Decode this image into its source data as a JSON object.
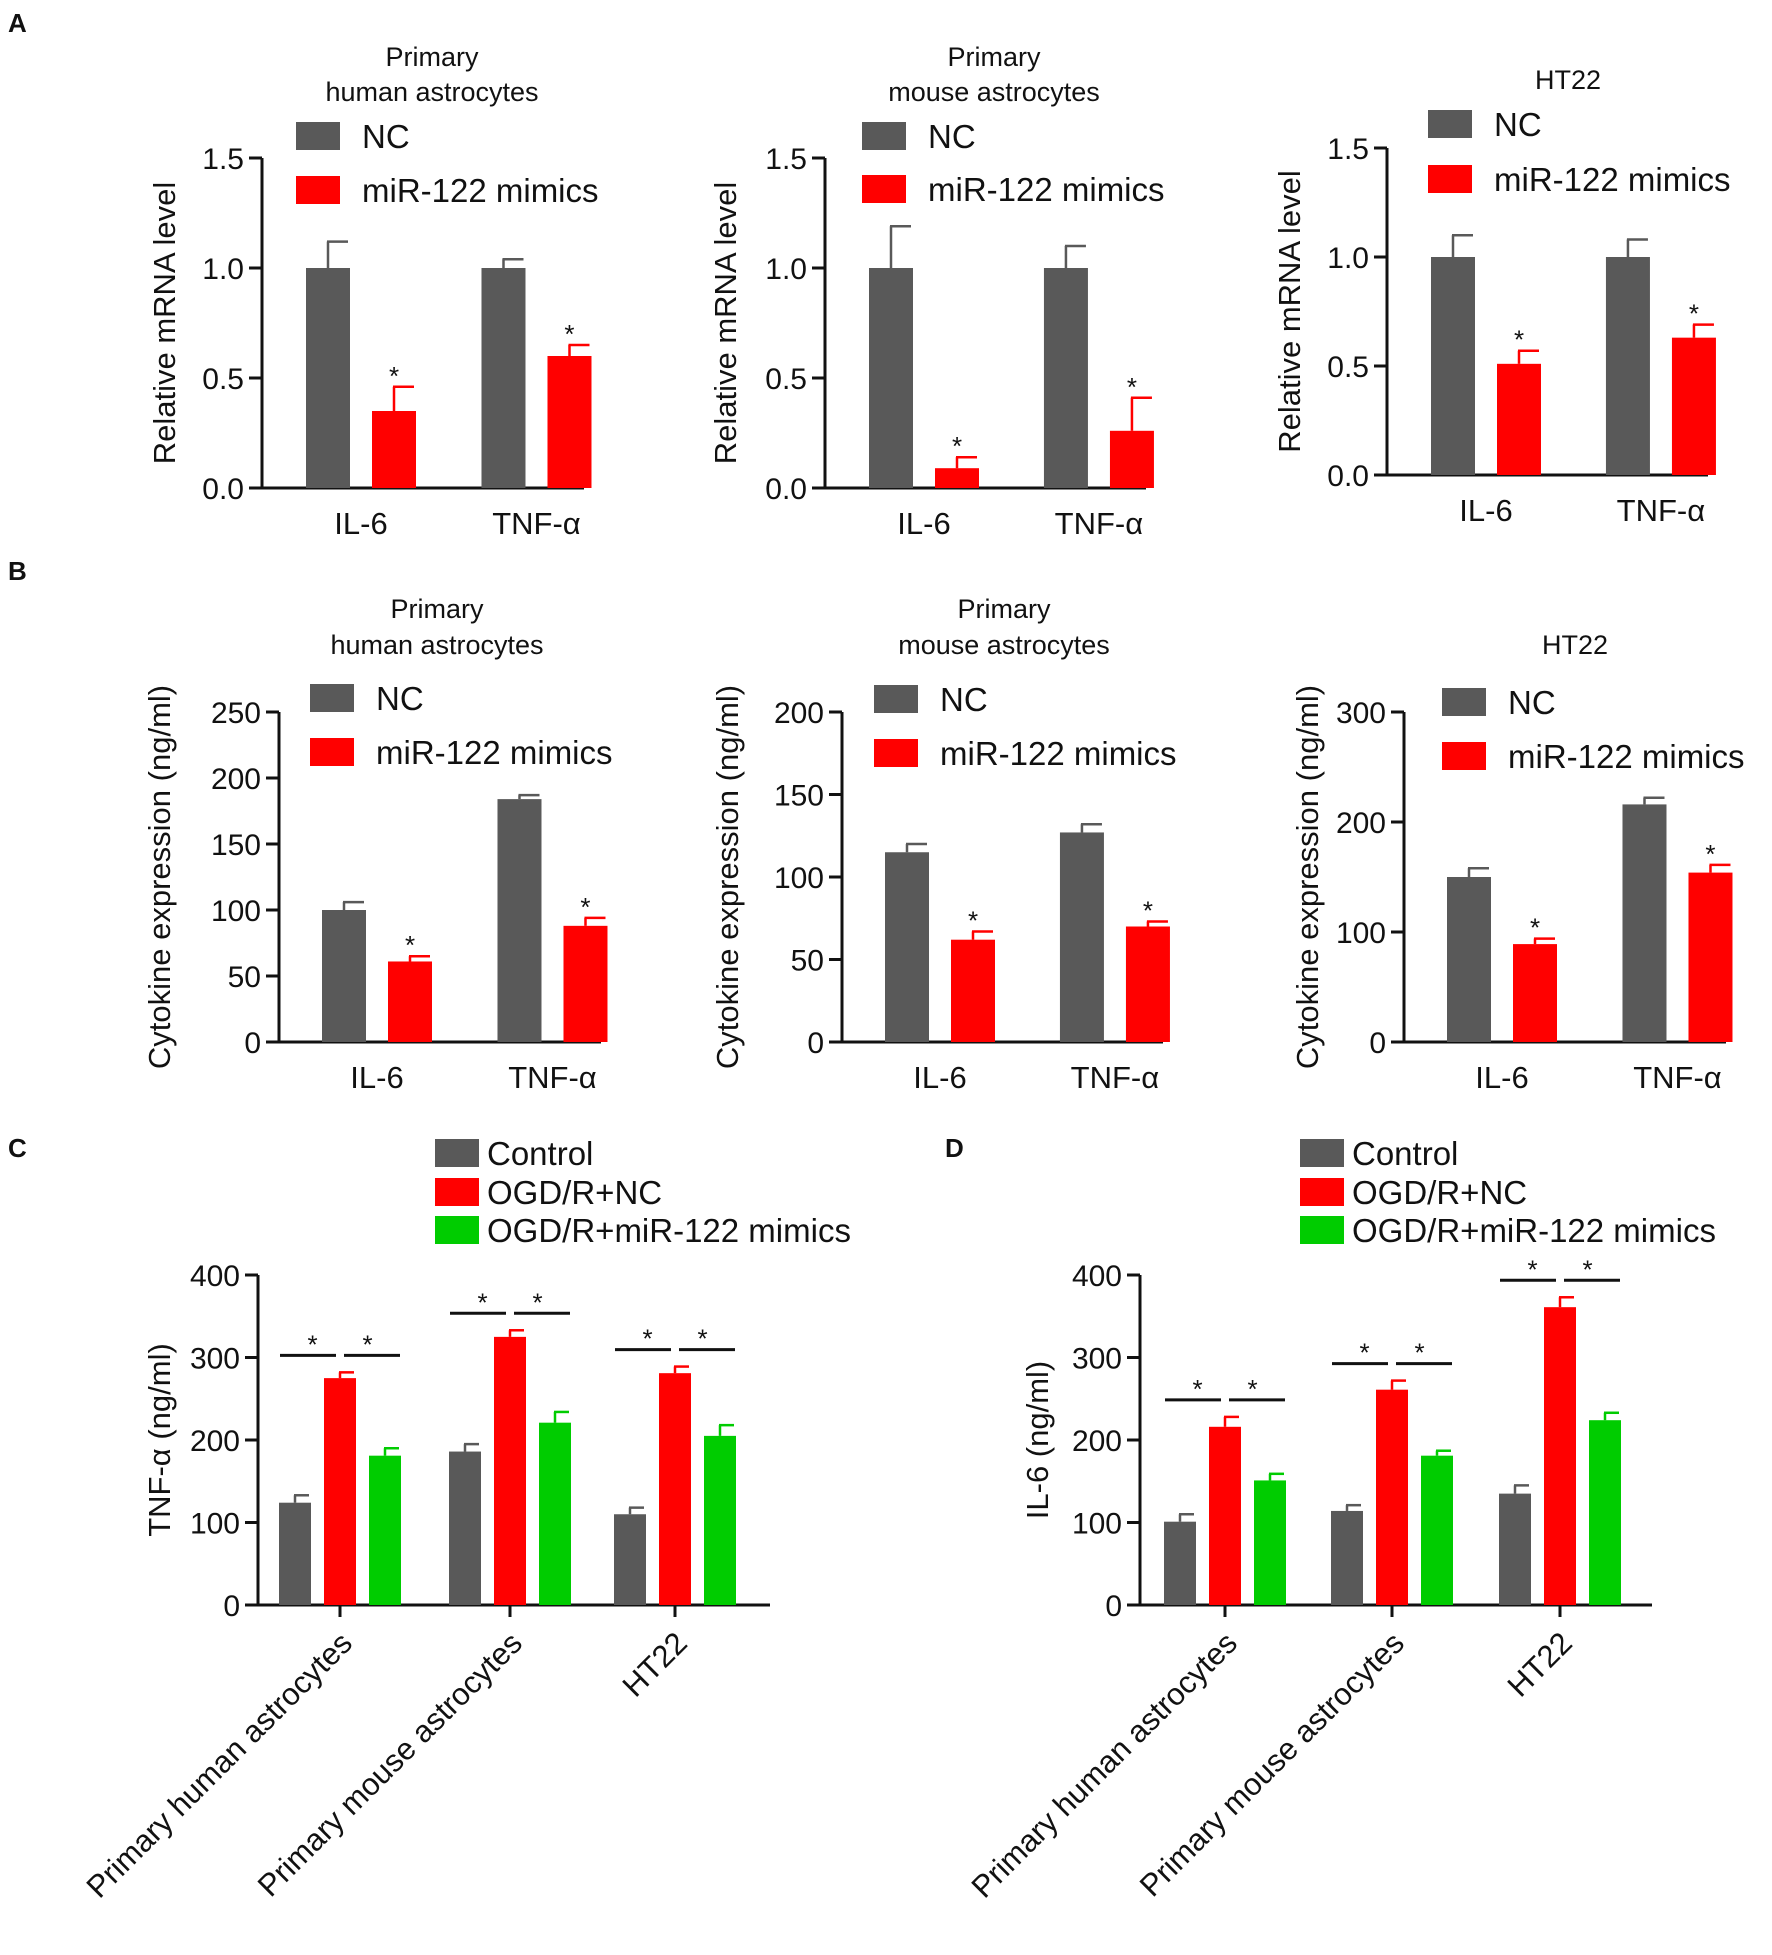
{
  "colors": {
    "NC": "#595959",
    "mimics": "#ff0000",
    "control": "#595959",
    "ogd_nc": "#ff0000",
    "ogd_mimics": "#00cc00",
    "axis": "#111111"
  },
  "panel_labels": [
    "A",
    "B",
    "C",
    "D"
  ],
  "symbols": {
    "significance": "*"
  },
  "chart_data": [
    {
      "id": "A1",
      "type": "bar",
      "panel": "A",
      "title": [
        "Primary",
        "human astrocytes"
      ],
      "ylabel": "Relative mRNA level",
      "ylim": [
        0,
        1.5
      ],
      "yticks": [
        "0.0",
        "0.5",
        "1.0",
        "1.5"
      ],
      "categories": [
        "IL-6",
        "TNF-α"
      ],
      "series": [
        {
          "name": "NC",
          "values": [
            1.0,
            1.0
          ],
          "errors": [
            0.12,
            0.04
          ],
          "sig": [
            false,
            false
          ]
        },
        {
          "name": "miR-122 mimics",
          "values": [
            0.35,
            0.6
          ],
          "errors": [
            0.11,
            0.05
          ],
          "sig": [
            true,
            true
          ]
        }
      ]
    },
    {
      "id": "A2",
      "type": "bar",
      "panel": "A",
      "title": [
        "Primary",
        "mouse astrocytes"
      ],
      "ylabel": "Relative mRNA level",
      "ylim": [
        0,
        1.5
      ],
      "yticks": [
        "0.0",
        "0.5",
        "1.0",
        "1.5"
      ],
      "categories": [
        "IL-6",
        "TNF-α"
      ],
      "series": [
        {
          "name": "NC",
          "values": [
            1.0,
            1.0
          ],
          "errors": [
            0.19,
            0.1
          ],
          "sig": [
            false,
            false
          ]
        },
        {
          "name": "miR-122 mimics",
          "values": [
            0.09,
            0.26
          ],
          "errors": [
            0.05,
            0.15
          ],
          "sig": [
            true,
            true
          ]
        }
      ]
    },
    {
      "id": "A3",
      "type": "bar",
      "panel": "A",
      "title": [
        "HT22"
      ],
      "ylabel": "Relative mRNA level",
      "ylim": [
        0,
        1.5
      ],
      "yticks": [
        "0.0",
        "0.5",
        "1.0",
        "1.5"
      ],
      "categories": [
        "IL-6",
        "TNF-α"
      ],
      "series": [
        {
          "name": "NC",
          "values": [
            1.0,
            1.0
          ],
          "errors": [
            0.1,
            0.08
          ],
          "sig": [
            false,
            false
          ]
        },
        {
          "name": "miR-122 mimics",
          "values": [
            0.51,
            0.63
          ],
          "errors": [
            0.06,
            0.06
          ],
          "sig": [
            true,
            true
          ]
        }
      ]
    },
    {
      "id": "B1",
      "type": "bar",
      "panel": "B",
      "title": [
        "Primary",
        "human astrocytes"
      ],
      "ylabel": "Cytokine expression (ng/ml)",
      "ylim": [
        0,
        250
      ],
      "yticks": [
        "0",
        "50",
        "100",
        "150",
        "200",
        "250"
      ],
      "categories": [
        "IL-6",
        "TNF-α"
      ],
      "series": [
        {
          "name": "NC",
          "values": [
            100,
            184
          ],
          "errors": [
            6,
            3
          ],
          "sig": [
            false,
            false
          ]
        },
        {
          "name": "miR-122 mimics",
          "values": [
            61,
            88
          ],
          "errors": [
            4,
            6
          ],
          "sig": [
            true,
            true
          ]
        }
      ]
    },
    {
      "id": "B2",
      "type": "bar",
      "panel": "B",
      "title": [
        "Primary",
        "mouse astrocytes"
      ],
      "ylabel": "Cytokine expression (ng/ml)",
      "ylim": [
        0,
        200
      ],
      "yticks": [
        "0",
        "50",
        "100",
        "150",
        "200"
      ],
      "categories": [
        "IL-6",
        "TNF-α"
      ],
      "series": [
        {
          "name": "NC",
          "values": [
            115,
            127
          ],
          "errors": [
            5,
            5
          ],
          "sig": [
            false,
            false
          ]
        },
        {
          "name": "miR-122 mimics",
          "values": [
            62,
            70
          ],
          "errors": [
            5,
            3
          ],
          "sig": [
            true,
            true
          ]
        }
      ]
    },
    {
      "id": "B3",
      "type": "bar",
      "panel": "B",
      "title": [
        "HT22"
      ],
      "ylabel": "Cytokine expression (ng/ml)",
      "ylim": [
        0,
        300
      ],
      "yticks": [
        "0",
        "100",
        "200",
        "300"
      ],
      "categories": [
        "IL-6",
        "TNF-α"
      ],
      "series": [
        {
          "name": "NC",
          "values": [
            150,
            216
          ],
          "errors": [
            8,
            6
          ],
          "sig": [
            false,
            false
          ]
        },
        {
          "name": "miR-122 mimics",
          "values": [
            89,
            154
          ],
          "errors": [
            5,
            7
          ],
          "sig": [
            true,
            true
          ]
        }
      ]
    },
    {
      "id": "C",
      "type": "bar",
      "panel": "C",
      "title": [],
      "ylabel": "TNF-α (ng/ml)",
      "ylim": [
        0,
        400
      ],
      "yticks": [
        "0",
        "100",
        "200",
        "300",
        "400"
      ],
      "categories": [
        "Primary human astrocytes",
        "Primary mouse astrocytes",
        "HT22"
      ],
      "series": [
        {
          "name": "Control",
          "values": [
            124,
            186,
            110
          ],
          "errors": [
            9,
            9,
            8
          ]
        },
        {
          "name": "OGD/R+NC",
          "values": [
            275,
            325,
            281
          ],
          "errors": [
            7,
            8,
            8
          ]
        },
        {
          "name": "OGD/R+miR-122 mimics",
          "values": [
            181,
            221,
            205
          ],
          "errors": [
            9,
            13,
            13
          ]
        }
      ],
      "comparisons": "* Control vs OGD/R+NC; * OGD/R+NC vs OGD/R+miR-122 mimics, in every group"
    },
    {
      "id": "D",
      "type": "bar",
      "panel": "D",
      "title": [],
      "ylabel": "IL-6 (ng/ml)",
      "ylim": [
        0,
        400
      ],
      "yticks": [
        "0",
        "100",
        "200",
        "300",
        "400"
      ],
      "categories": [
        "Primary human astrocytes",
        "Primary mouse astrocytes",
        "HT22"
      ],
      "series": [
        {
          "name": "Control",
          "values": [
            101,
            114,
            135
          ],
          "errors": [
            9,
            7,
            10
          ]
        },
        {
          "name": "OGD/R+NC",
          "values": [
            216,
            261,
            361
          ],
          "errors": [
            12,
            11,
            12
          ]
        },
        {
          "name": "OGD/R+miR-122 mimics",
          "values": [
            151,
            181,
            224
          ],
          "errors": [
            8,
            6,
            9
          ]
        }
      ],
      "comparisons": "* Control vs OGD/R+NC; * OGD/R+NC vs OGD/R+miR-122 mimics, in every group"
    }
  ]
}
